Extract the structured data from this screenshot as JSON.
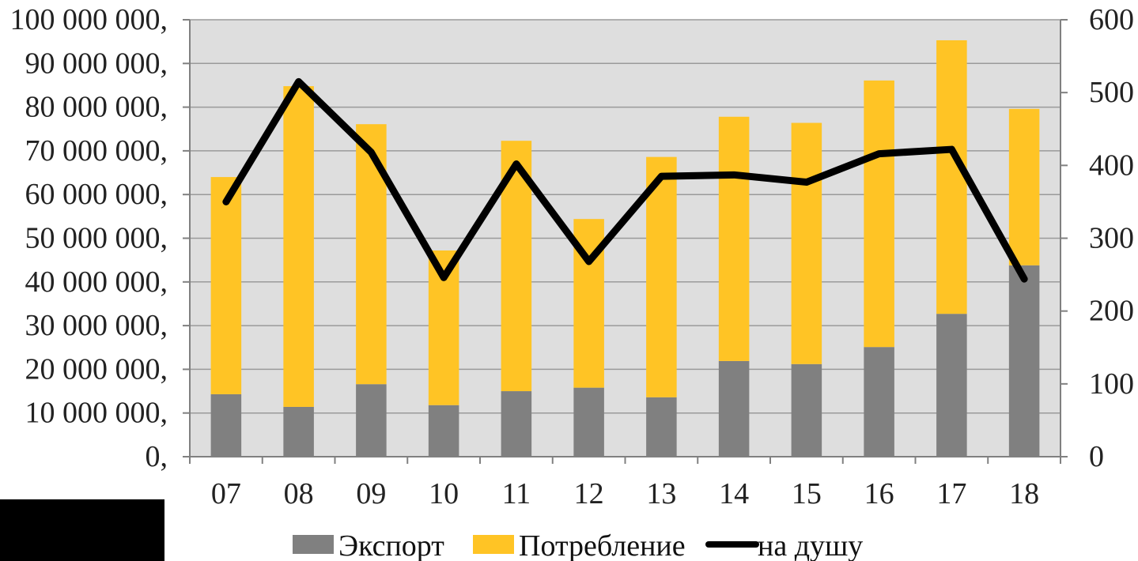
{
  "chart_data": {
    "type": "bar",
    "stacked": true,
    "categories": [
      "07",
      "08",
      "09",
      "10",
      "11",
      "12",
      "13",
      "14",
      "15",
      "16",
      "17",
      "18"
    ],
    "series": [
      {
        "name": "Экспорт",
        "type": "bar",
        "axis": "left",
        "color": "#808080",
        "values": [
          14300000,
          11400000,
          16600000,
          11800000,
          15000000,
          15800000,
          13600000,
          21900000,
          21200000,
          25100000,
          32700000,
          43800000
        ]
      },
      {
        "name": "Потребление",
        "type": "bar",
        "axis": "left",
        "color": "#FFC425",
        "values": [
          49700000,
          73400000,
          59500000,
          35400000,
          57300000,
          38600000,
          55000000,
          55900000,
          55200000,
          61000000,
          62600000,
          35800000
        ]
      },
      {
        "name": "на душу",
        "type": "line",
        "axis": "right",
        "color": "#000000",
        "values": [
          350,
          515,
          418,
          246,
          402,
          268,
          385,
          387,
          377,
          416,
          422,
          244
        ]
      }
    ],
    "yaxis_left": {
      "ylim": [
        0,
        100000000
      ],
      "ticks": [
        0,
        10000000,
        20000000,
        30000000,
        40000000,
        50000000,
        60000000,
        70000000,
        80000000,
        90000000,
        100000000
      ],
      "tick_labels": [
        "0,",
        "10 000 000,",
        "20 000 000,",
        "30 000 000,",
        "40 000 000,",
        "50 000 000,",
        "60 000 000,",
        "70 000 000,",
        "80 000 000,",
        "90 000 000,",
        "100 000 000,"
      ]
    },
    "yaxis_right": {
      "ylim": [
        0,
        600
      ],
      "ticks": [
        0,
        100,
        200,
        300,
        400,
        500,
        600
      ],
      "tick_labels": [
        "0",
        "100",
        "200",
        "300",
        "400",
        "500",
        "600"
      ]
    },
    "grid": true,
    "plot_background": "#DEDEDE",
    "legend": {
      "position": "bottom",
      "entries": [
        "Экспорт",
        "Потребление",
        "на душу"
      ]
    }
  }
}
